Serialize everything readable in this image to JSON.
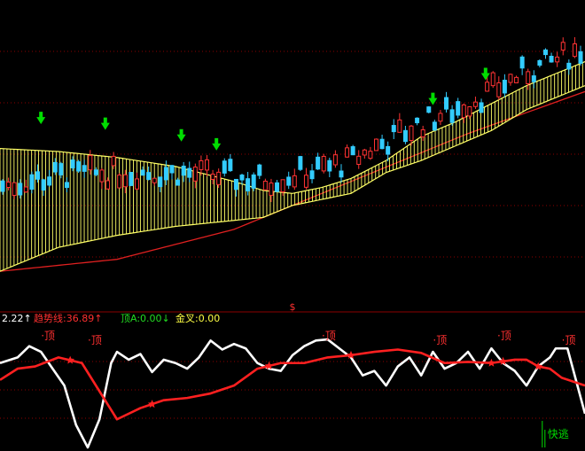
{
  "colors": {
    "background": "#000000",
    "grid": "#8b0000",
    "up": "#ff3333",
    "down": "#33ccff",
    "band": "#ffff66",
    "longMA": "#e02020",
    "kd_white": "#ffffff",
    "kd_red": "#ff2020",
    "signal_green": "#00dd00",
    "label_red": "#ff3030"
  },
  "indicator_bar": {
    "items": [
      {
        "text": "2.22↑",
        "color": "#ffffff"
      },
      {
        "text": "趋势线:36.89↑",
        "color": "#ff3030"
      },
      {
        "text": "顶A:0.00↓",
        "color": "#22dd22"
      },
      {
        "text": "金叉:0.00",
        "color": "#ffff44"
      }
    ]
  },
  "chart_data": [
    {
      "type": "candlestick",
      "name": "",
      "ylim": [
        0,
        100
      ],
      "grid": true,
      "candles_from": 3,
      "candles_to": 655,
      "candles_count": 100,
      "band_upper_anchor_y": [
        [
          0,
          51
        ],
        [
          10,
          50
        ],
        [
          20,
          48
        ],
        [
          30,
          45
        ],
        [
          40,
          40
        ],
        [
          45,
          37
        ],
        [
          50,
          36
        ],
        [
          55,
          38
        ],
        [
          60,
          41
        ],
        [
          66,
          47
        ],
        [
          72,
          55
        ],
        [
          78,
          60
        ],
        [
          84,
          66
        ],
        [
          90,
          72
        ],
        [
          100,
          80
        ]
      ],
      "band_lower_anchor_y": [
        [
          0,
          10
        ],
        [
          10,
          18
        ],
        [
          20,
          22
        ],
        [
          30,
          25
        ],
        [
          40,
          27
        ],
        [
          45,
          28
        ],
        [
          50,
          32
        ],
        [
          55,
          34
        ],
        [
          60,
          36
        ],
        [
          66,
          43
        ],
        [
          72,
          47
        ],
        [
          78,
          52
        ],
        [
          84,
          57
        ],
        [
          90,
          64
        ],
        [
          100,
          72
        ]
      ],
      "long_ma_anchor_y": [
        [
          0,
          10
        ],
        [
          20,
          14
        ],
        [
          40,
          24
        ],
        [
          60,
          40
        ],
        [
          80,
          56
        ],
        [
          100,
          70
        ]
      ],
      "arrows": [
        7,
        18,
        31,
        37,
        74,
        83
      ],
      "labels": [
        {
          "i": 50,
          "text": "$",
          "color": "#ff3030"
        }
      ]
    },
    {
      "type": "line",
      "name": "",
      "ylim": [
        0,
        100
      ],
      "series": [
        {
          "name": "",
          "color": "#ffffff",
          "x": [
            0,
            3,
            5,
            7,
            9,
            11,
            13,
            15,
            17,
            19,
            20,
            22,
            24,
            26,
            28,
            30,
            32,
            34,
            36,
            38,
            40,
            42,
            44,
            46,
            48,
            50,
            52,
            54,
            56,
            58,
            60,
            62,
            64,
            66,
            68,
            70,
            72,
            74,
            76,
            78,
            80,
            82,
            84,
            86,
            88,
            90,
            92,
            94,
            95,
            97,
            100
          ],
          "values": [
            75,
            80,
            90,
            85,
            70,
            55,
            20,
            0,
            25,
            75,
            85,
            78,
            83,
            67,
            78,
            75,
            70,
            80,
            95,
            87,
            92,
            88,
            75,
            70,
            68,
            82,
            90,
            95,
            96,
            88,
            80,
            64,
            68,
            55,
            72,
            80,
            64,
            85,
            70,
            75,
            85,
            70,
            88,
            75,
            68,
            55,
            72,
            80,
            88,
            88,
            30
          ]
        },
        {
          "name": "",
          "color": "#ff2020",
          "x": [
            0,
            3,
            6,
            10,
            14,
            17,
            20,
            24,
            28,
            32,
            36,
            40,
            44,
            48,
            52,
            56,
            60,
            64,
            68,
            72,
            76,
            80,
            84,
            88,
            90,
            92,
            94,
            96,
            100
          ],
          "values": [
            60,
            70,
            72,
            80,
            75,
            50,
            25,
            35,
            42,
            44,
            48,
            55,
            70,
            75,
            75,
            80,
            82,
            85,
            87,
            84,
            75,
            76,
            75,
            78,
            78,
            72,
            70,
            62,
            55
          ]
        }
      ],
      "labels": [
        {
          "x": 7,
          "text": "·顶"
        },
        {
          "x": 15,
          "text": "·顶"
        },
        {
          "x": 55,
          "text": "·顶"
        },
        {
          "x": 74,
          "text": "·顶"
        },
        {
          "x": 85,
          "text": "·顶"
        },
        {
          "x": 96,
          "text": "·顶"
        }
      ],
      "stars": [
        12,
        26,
        46,
        60,
        84,
        86,
        92
      ],
      "signal": {
        "x": 93,
        "text": "快逃",
        "color": "#00dd00"
      }
    }
  ]
}
